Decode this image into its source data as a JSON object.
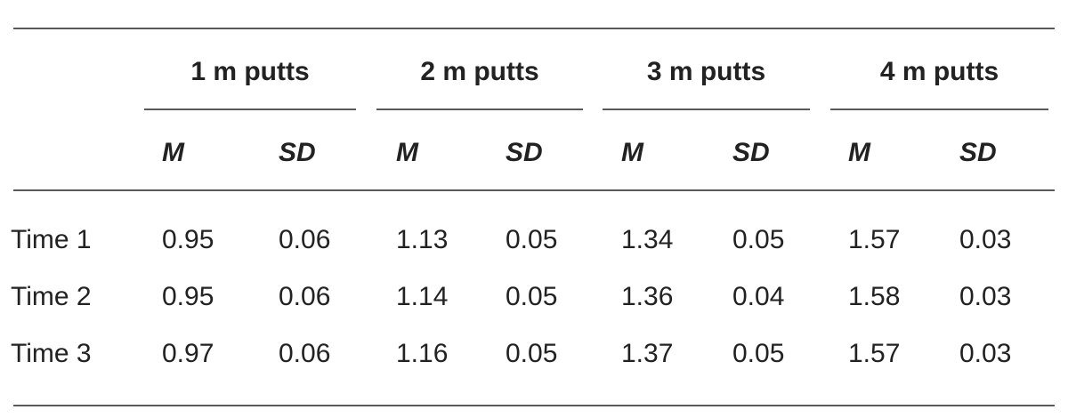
{
  "table": {
    "groups": [
      "1 m putts",
      "2 m putts",
      "3 m putts",
      "4 m putts"
    ],
    "subheaders": [
      "M",
      "SD",
      "M",
      "SD",
      "M",
      "SD",
      "M",
      "SD"
    ],
    "rows": [
      {
        "label": "Time 1",
        "values": [
          "0.95",
          "0.06",
          "1.13",
          "0.05",
          "1.34",
          "0.05",
          "1.57",
          "0.03"
        ]
      },
      {
        "label": "Time 2",
        "values": [
          "0.95",
          "0.06",
          "1.14",
          "0.05",
          "1.36",
          "0.04",
          "1.58",
          "0.03"
        ]
      },
      {
        "label": "Time 3",
        "values": [
          "0.97",
          "0.06",
          "1.16",
          "0.05",
          "1.37",
          "0.05",
          "1.57",
          "0.03"
        ]
      }
    ]
  }
}
